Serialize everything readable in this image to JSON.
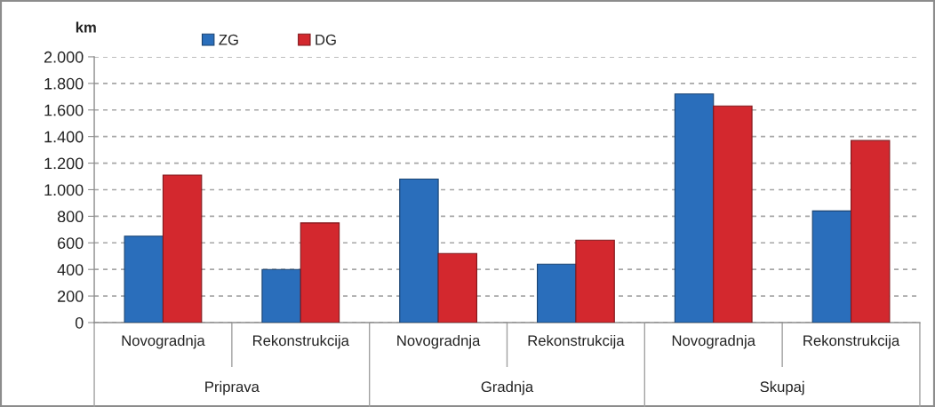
{
  "chart_data": {
    "type": "bar",
    "categories": [
      "Novogradnja",
      "Rekonstrukcija",
      "Novogradnja",
      "Rekonstrukcija",
      "Novogradnja",
      "Rekonstrukcija"
    ],
    "series": [
      {
        "name": "ZG",
        "color": "#2a6ebb",
        "values": [
          650,
          400,
          1080,
          440,
          1720,
          840
        ]
      },
      {
        "name": "DG",
        "color": "#d3282e",
        "values": [
          1110,
          750,
          520,
          620,
          1630,
          1370
        ]
      }
    ],
    "ylabel": "km",
    "ylim": [
      0,
      2000
    ],
    "yticks": [
      0,
      200,
      400,
      600,
      800,
      {
        "value": 1000,
        "label": "1.000"
      },
      {
        "value": 1200,
        "label": "1.200"
      },
      {
        "value": 1400,
        "label": "1.400"
      },
      {
        "value": 1600,
        "label": "1.600"
      },
      {
        "value": 1800,
        "label": "1.800"
      },
      {
        "value": 2000,
        "label": "2.000"
      }
    ],
    "annotations": [
      "Priprava",
      "Gradnja",
      "Skupaj"
    ],
    "grid": "y",
    "legend": "top"
  }
}
